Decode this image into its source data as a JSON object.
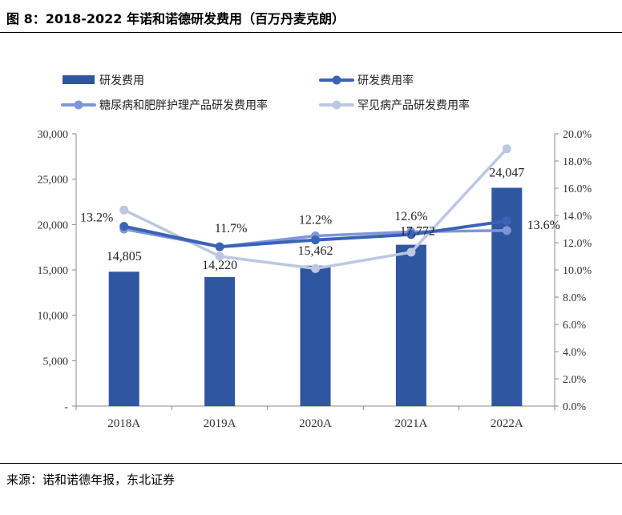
{
  "figure": {
    "title": "图 8：2018-2022 年诺和诺德研发费用（百万丹麦克朗）",
    "source": "来源：诺和诺德年报，东北证券"
  },
  "chart_data": {
    "type": "bar",
    "categories": [
      "2018A",
      "2019A",
      "2020A",
      "2021A",
      "2022A"
    ],
    "y_left": {
      "min": 0,
      "max": 30000,
      "ticks": [
        "-",
        "5,000",
        "10,000",
        "15,000",
        "20,000",
        "25,000",
        "30,000"
      ]
    },
    "y_right": {
      "min": 0,
      "max": 0.2,
      "ticks": [
        "0.0%",
        "2.0%",
        "4.0%",
        "6.0%",
        "8.0%",
        "10.0%",
        "12.0%",
        "14.0%",
        "16.0%",
        "18.0%",
        "20.0%"
      ]
    },
    "series": [
      {
        "name": "研发费用",
        "type": "bar",
        "axis": "left",
        "color": "#2e56a1",
        "values": [
          14805,
          14220,
          15462,
          17772,
          24047
        ],
        "labels": [
          "14,805",
          "14,220",
          "15,462",
          "17,772",
          "24,047"
        ]
      },
      {
        "name": "研发费用率",
        "type": "line",
        "axis": "right",
        "color": "#3a63b5",
        "values": [
          0.132,
          0.117,
          0.122,
          0.126,
          0.136
        ],
        "labels": [
          "13.2%",
          "11.7%",
          "12.2%",
          "12.6%",
          "13.6%"
        ]
      },
      {
        "name": "糖尿病和肥胖护理产品研发费用率",
        "type": "line",
        "axis": "right",
        "color": "#7f96d6",
        "values": [
          0.13,
          0.117,
          0.125,
          0.128,
          0.129
        ]
      },
      {
        "name": "罕见病产品研发费用率",
        "type": "line",
        "axis": "right",
        "color": "#bcc8e2",
        "values": [
          0.144,
          0.11,
          0.101,
          0.113,
          0.189
        ]
      }
    ]
  }
}
